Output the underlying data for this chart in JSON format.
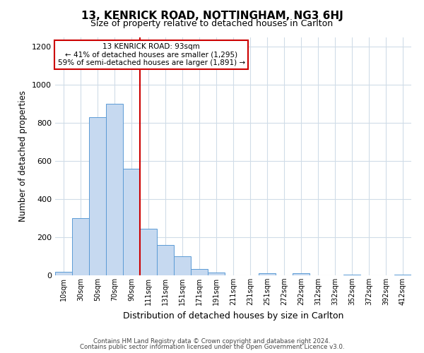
{
  "title": "13, KENRICK ROAD, NOTTINGHAM, NG3 6HJ",
  "subtitle": "Size of property relative to detached houses in Carlton",
  "xlabel": "Distribution of detached houses by size in Carlton",
  "ylabel": "Number of detached properties",
  "bar_labels": [
    "10sqm",
    "30sqm",
    "50sqm",
    "70sqm",
    "90sqm",
    "111sqm",
    "131sqm",
    "151sqm",
    "171sqm",
    "191sqm",
    "211sqm",
    "231sqm",
    "251sqm",
    "272sqm",
    "292sqm",
    "312sqm",
    "332sqm",
    "352sqm",
    "372sqm",
    "392sqm",
    "412sqm"
  ],
  "bar_values": [
    20,
    300,
    830,
    900,
    560,
    245,
    160,
    100,
    35,
    15,
    0,
    0,
    10,
    0,
    10,
    0,
    0,
    5,
    0,
    0,
    5
  ],
  "bar_color": "#c6d9f0",
  "bar_edge_color": "#5b9bd5",
  "red_line_index": 5,
  "marker_label": "13 KENRICK ROAD: 93sqm",
  "annotation_line1": "← 41% of detached houses are smaller (1,295)",
  "annotation_line2": "59% of semi-detached houses are larger (1,891) →",
  "ylim": [
    0,
    1250
  ],
  "yticks": [
    0,
    200,
    400,
    600,
    800,
    1000,
    1200
  ],
  "footer_line1": "Contains HM Land Registry data © Crown copyright and database right 2024.",
  "footer_line2": "Contains public sector information licensed under the Open Government Licence v3.0.",
  "bg_color": "#ffffff",
  "grid_color": "#d0dce8",
  "red_line_color": "#cc0000",
  "annotation_box_color": "#ffffff",
  "annotation_box_edge": "#cc0000"
}
